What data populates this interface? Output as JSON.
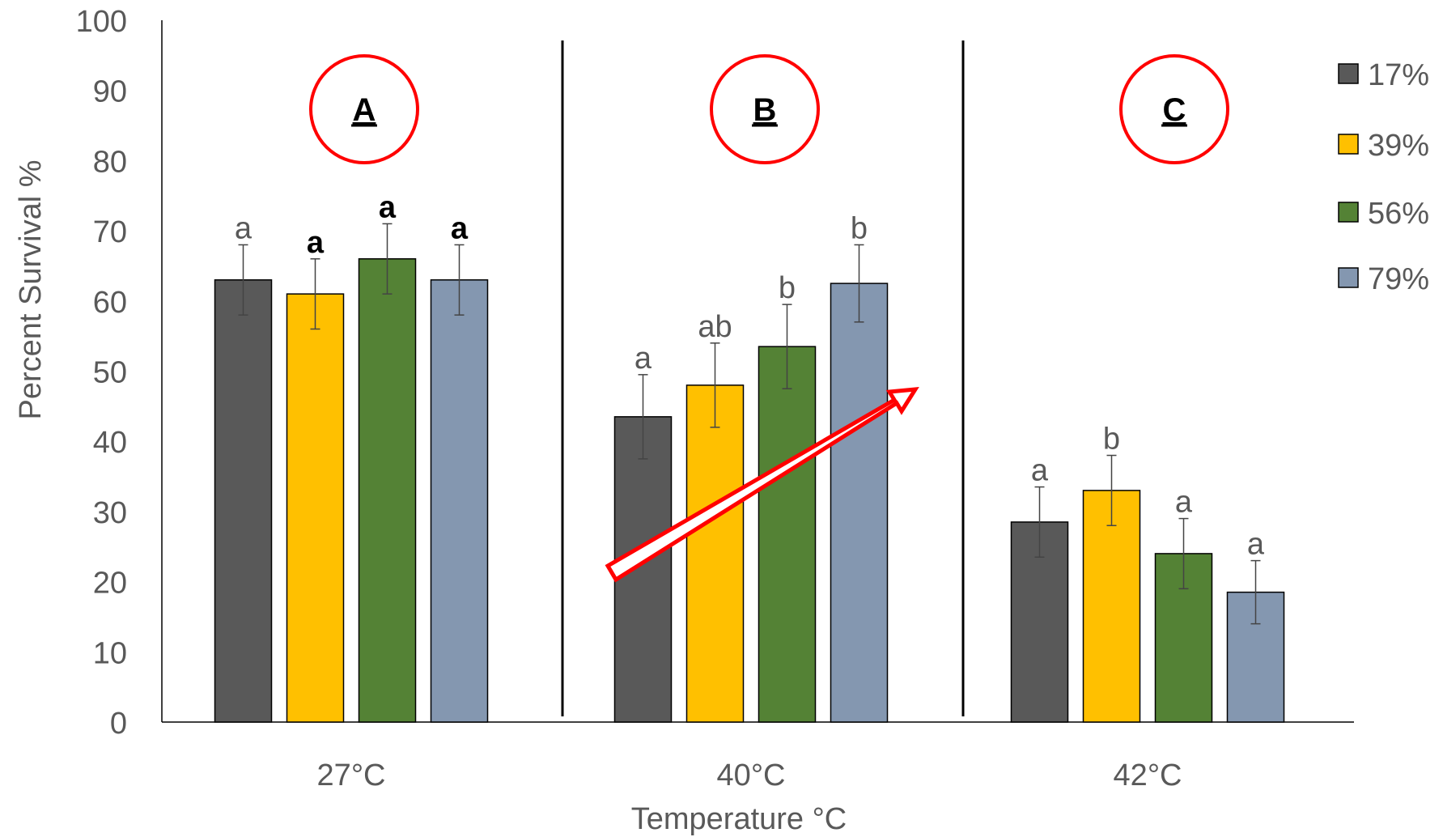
{
  "chart_data": {
    "type": "bar",
    "title": "",
    "xlabel": "Temperature °C",
    "ylabel": "Percent Survival %",
    "ylim": [
      0,
      100
    ],
    "yticks": [
      "0",
      "10",
      "20",
      "30",
      "40",
      "50",
      "60",
      "70",
      "80",
      "90",
      "100"
    ],
    "categories": [
      "27°C",
      "40°C",
      "42°C"
    ],
    "series": [
      {
        "name": "17%",
        "color": "#595959",
        "values": [
          63,
          43.5,
          28.5
        ],
        "errors": [
          5,
          6,
          5
        ]
      },
      {
        "name": "39%",
        "color": "#FFC000",
        "values": [
          61,
          48,
          33
        ],
        "errors": [
          5,
          6,
          5
        ]
      },
      {
        "name": "56%",
        "color": "#548235",
        "values": [
          66,
          53.5,
          24
        ],
        "errors": [
          5,
          6,
          5
        ]
      },
      {
        "name": "79%",
        "color": "#8497B0",
        "values": [
          63,
          62.5,
          18.5
        ],
        "errors": [
          5,
          5.5,
          4.5
        ]
      }
    ],
    "significance_letters": [
      [
        "a",
        "a",
        "a",
        "a"
      ],
      [
        "a",
        "ab",
        "b",
        "b"
      ],
      [
        "a",
        "b",
        "a",
        "a"
      ]
    ],
    "bold_letters": [
      [
        false,
        true,
        true,
        true
      ],
      [
        false,
        false,
        false,
        false
      ],
      [
        false,
        false,
        false,
        false
      ]
    ],
    "panel_labels": [
      "A",
      "B",
      "C"
    ],
    "legend": "right",
    "grid": false,
    "annotation_color": "#FF0000"
  }
}
